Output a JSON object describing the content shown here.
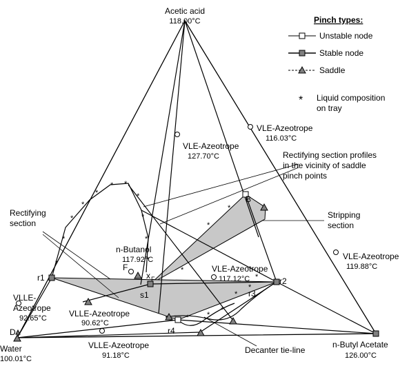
{
  "vertices": {
    "top": {
      "name": "Acetic acid",
      "temp": "118.00°C"
    },
    "left": {
      "name": "Water",
      "temp": "100.01°C",
      "point": "D"
    },
    "right": {
      "name": "n-Butyl Acetate",
      "temp": "126.00°C"
    }
  },
  "legend": {
    "title": "Pinch types:",
    "unstable": "Unstable node",
    "stable": "Stable node",
    "saddle": "Saddle",
    "tray": "Liquid composition",
    "tray2": "on tray"
  },
  "azeotropes": {
    "vle_top_right": {
      "name": "VLE-Azeotrope",
      "temp": "116.03°C"
    },
    "vle_center": {
      "name": "VLE-Azeotrope",
      "temp": "127.70°C"
    },
    "vle_right": {
      "name": "VLE-Azeotrope",
      "temp": "119.88°C"
    },
    "vle_inner": {
      "name": "VLE-Azeotrope",
      "temp": "117.12°C"
    },
    "vlle_left_1": "VLLE-",
    "vlle_left_2": "Azeotrope",
    "vlle_left_temp": "92.65°C",
    "vlle_mid": {
      "name": "VLLE-Azeotrope",
      "temp": "90.62°C"
    },
    "vlle_bottom": {
      "name": "VLLE-Azeotrope",
      "temp": "91.18°C"
    }
  },
  "component": {
    "name": "n-Butanol",
    "temp": "117.92°C"
  },
  "annotations": {
    "rect_profiles_1": "Rectifying section profiles",
    "rect_profiles_2": "in the vicinity of saddle",
    "rect_profiles_3": "pinch points",
    "rectifying_1": "Rectifying",
    "rectifying_2": "section",
    "stripping_1": "Stripping",
    "stripping_2": "section",
    "decanter": "Decanter tie-line"
  },
  "points": {
    "B": "B",
    "F": "F",
    "xF": "x",
    "xF_sub": "F",
    "s1": "s1",
    "r1": "r1",
    "r2": "r2",
    "r3": "r3",
    "r4": "r4"
  },
  "colors": {
    "region_fill": "#c8c8c8",
    "stable_fill": "#808080",
    "line": "#000000"
  }
}
